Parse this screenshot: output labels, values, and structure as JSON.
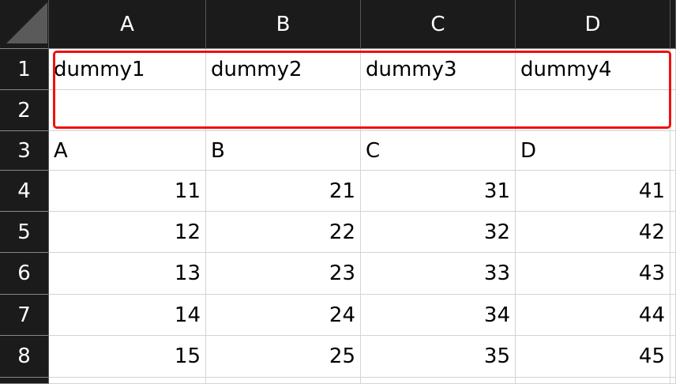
{
  "columns": [
    "A",
    "B",
    "C",
    "D"
  ],
  "rows": [
    "1",
    "2",
    "3",
    "4",
    "5",
    "6",
    "7",
    "8"
  ],
  "cells": [
    [
      "dummy1",
      "dummy2",
      "dummy3",
      "dummy4"
    ],
    [
      "",
      "",
      "",
      ""
    ],
    [
      "A",
      "B",
      "C",
      "D"
    ],
    [
      "11",
      "21",
      "31",
      "41"
    ],
    [
      "12",
      "22",
      "32",
      "42"
    ],
    [
      "13",
      "23",
      "33",
      "43"
    ],
    [
      "14",
      "24",
      "34",
      "44"
    ],
    [
      "15",
      "25",
      "35",
      "45"
    ]
  ],
  "selection": {
    "range": "A1:D2",
    "color": "#f01010"
  }
}
